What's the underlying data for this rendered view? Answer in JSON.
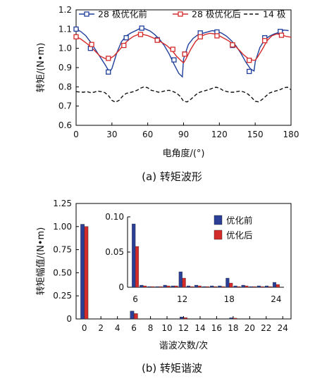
{
  "chart_data": [
    {
      "id": "a",
      "type": "line",
      "caption": "(a) 转矩波形",
      "xlabel": "电角度/(°)",
      "ylabel": "转矩/(N•m)",
      "xlim": [
        0,
        180
      ],
      "ylim": [
        0.6,
        1.2
      ],
      "xticks": [
        0,
        30,
        60,
        90,
        120,
        150,
        180
      ],
      "yticks": [
        0.6,
        0.7,
        0.8,
        0.9,
        1.0,
        1.1,
        1.2
      ],
      "ytick_labels": [
        "0.6",
        "0.7",
        "0.8",
        "0.9",
        "1.0",
        "1.1",
        "1.2"
      ],
      "legend": "top-right",
      "series": [
        {
          "name": "28 极优化前",
          "color": "#1f3f9a",
          "style": "solid",
          "marker": "square-open",
          "x": [
            0,
            4,
            8,
            12,
            16,
            20,
            24,
            28,
            30,
            34,
            38,
            42,
            46,
            50,
            54,
            58,
            62,
            66,
            70,
            74,
            78,
            82,
            86,
            89,
            90,
            94,
            98,
            102,
            106,
            110,
            114,
            118,
            122,
            126,
            130,
            134,
            138,
            142,
            146,
            149,
            150,
            154,
            158,
            162,
            166,
            170,
            174,
            178
          ],
          "y": [
            1.1,
            1.087,
            1.066,
            1.034,
            0.995,
            0.956,
            0.918,
            0.877,
            0.895,
            0.975,
            1.035,
            1.065,
            1.08,
            1.092,
            1.105,
            1.101,
            1.09,
            1.071,
            1.046,
            1.013,
            0.97,
            0.918,
            0.87,
            0.852,
            0.945,
            1.02,
            1.052,
            1.07,
            1.078,
            1.085,
            1.092,
            1.088,
            1.079,
            1.063,
            1.04,
            1.012,
            0.975,
            0.93,
            0.893,
            0.882,
            0.93,
            1.005,
            1.045,
            1.063,
            1.075,
            1.083,
            1.095,
            1.092
          ],
          "markers_x": [
            0,
            12,
            27,
            42,
            55,
            68,
            82,
            91,
            104,
            118,
            131,
            145,
            158,
            171
          ],
          "markers_y": [
            1.1,
            1.0,
            0.877,
            1.055,
            1.105,
            1.045,
            0.94,
            0.97,
            1.08,
            1.085,
            1.015,
            0.88,
            1.055,
            1.088
          ]
        },
        {
          "name": "28 极优化后",
          "color": "#d42a2a",
          "style": "solid",
          "marker": "square-open",
          "x": [
            0,
            4,
            8,
            12,
            16,
            20,
            24,
            28,
            32,
            36,
            40,
            44,
            48,
            52,
            56,
            60,
            64,
            68,
            72,
            76,
            80,
            84,
            88,
            90,
            92,
            96,
            100,
            104,
            108,
            112,
            116,
            120,
            124,
            128,
            132,
            136,
            140,
            144,
            148,
            150,
            152,
            156,
            160,
            164,
            168,
            172,
            176,
            180
          ],
          "y": [
            1.06,
            1.048,
            1.03,
            1.01,
            0.985,
            0.96,
            0.948,
            0.945,
            0.962,
            0.99,
            1.02,
            1.045,
            1.062,
            1.072,
            1.072,
            1.066,
            1.056,
            1.044,
            1.03,
            1.014,
            0.992,
            0.96,
            0.935,
            0.925,
            0.945,
            0.995,
            1.035,
            1.06,
            1.072,
            1.078,
            1.075,
            1.065,
            1.052,
            1.038,
            1.02,
            0.995,
            0.968,
            0.948,
            0.938,
            0.938,
            0.955,
            0.995,
            1.04,
            1.065,
            1.075,
            1.07,
            1.062,
            1.058
          ],
          "markers_x": [
            0,
            13,
            27,
            40,
            54,
            68,
            81,
            91,
            104,
            118,
            131,
            145,
            158,
            172
          ],
          "markers_y": [
            1.06,
            1.02,
            0.948,
            1.015,
            1.072,
            1.042,
            0.995,
            0.97,
            1.06,
            1.065,
            1.018,
            0.938,
            1.04,
            1.068
          ]
        },
        {
          "name": "14 极",
          "color": "#111111",
          "style": "dashed",
          "marker": "none",
          "x": [
            0,
            3,
            6,
            9,
            12,
            15,
            18,
            21,
            24,
            27,
            30,
            33,
            36,
            39,
            42,
            45,
            48,
            51,
            54,
            57,
            60,
            63,
            66,
            69,
            72,
            75,
            78,
            81,
            84,
            87,
            90,
            93,
            96,
            99,
            102,
            105,
            108,
            111,
            114,
            117,
            120,
            123,
            126,
            129,
            132,
            135,
            138,
            141,
            144,
            147,
            150,
            153,
            156,
            159,
            162,
            165,
            168,
            171,
            174,
            177,
            180
          ],
          "y": [
            0.775,
            0.773,
            0.772,
            0.775,
            0.77,
            0.772,
            0.778,
            0.775,
            0.77,
            0.755,
            0.73,
            0.72,
            0.73,
            0.752,
            0.766,
            0.77,
            0.775,
            0.782,
            0.793,
            0.8,
            0.795,
            0.782,
            0.778,
            0.772,
            0.775,
            0.78,
            0.782,
            0.776,
            0.768,
            0.752,
            0.725,
            0.722,
            0.735,
            0.752,
            0.768,
            0.775,
            0.78,
            0.785,
            0.792,
            0.798,
            0.794,
            0.782,
            0.776,
            0.772,
            0.772,
            0.776,
            0.778,
            0.772,
            0.762,
            0.745,
            0.725,
            0.722,
            0.735,
            0.752,
            0.768,
            0.775,
            0.78,
            0.786,
            0.795,
            0.798,
            0.785
          ]
        }
      ]
    },
    {
      "id": "b",
      "type": "bar",
      "caption": "(b) 转矩谐波",
      "xlabel": "谐波次数/次",
      "ylabel": "转矩幅值/(N•m)",
      "xlim": [
        -1,
        25
      ],
      "ylim": [
        0,
        1.25
      ],
      "xticks": [
        0,
        2,
        4,
        6,
        8,
        10,
        12,
        14,
        16,
        18,
        20,
        22,
        24
      ],
      "yticks": [
        0,
        0.25,
        0.5,
        0.75,
        1.0,
        1.25
      ],
      "ytick_labels": [
        "0",
        "0.25",
        "0.50",
        "0.75",
        "1.00",
        "1.25"
      ],
      "legend": "inset, top-right",
      "series": [
        {
          "name": "优化前",
          "color": "#2b3f96",
          "orders": [
            0,
            6,
            12,
            18
          ],
          "values": [
            1.025,
            0.085,
            0.021,
            0.012
          ]
        },
        {
          "name": "优化后",
          "color": "#d32a2a",
          "orders": [
            0,
            6,
            12,
            18
          ],
          "values": [
            1.0,
            0.058,
            0.014,
            0.008
          ]
        }
      ],
      "inset": {
        "xlim": [
          5,
          25
        ],
        "ylim": [
          0,
          0.1
        ],
        "xticks": [
          6,
          12,
          18,
          24
        ],
        "yticks": [
          0,
          0.05,
          0.1
        ],
        "ytick_labels": [
          "0",
          "0.05",
          "0.10"
        ],
        "series": [
          {
            "name": "优化前",
            "color": "#2b3f96",
            "orders": [
              6,
              7,
              8,
              9,
              10,
              11,
              12,
              13,
              14,
              15,
              16,
              17,
              18,
              19,
              20,
              21,
              22,
              23,
              24
            ],
            "values": [
              0.09,
              0.003,
              0.001,
              0.001,
              0.003,
              0.002,
              0.022,
              0.002,
              0.003,
              0.001,
              0.002,
              0.002,
              0.013,
              0.002,
              0.003,
              0.001,
              0.002,
              0.002,
              0.007
            ]
          },
          {
            "name": "优化后",
            "color": "#d32a2a",
            "orders": [
              6,
              7,
              8,
              9,
              10,
              11,
              12,
              13,
              14,
              15,
              16,
              17,
              18,
              19,
              20,
              21,
              22,
              23,
              24
            ],
            "values": [
              0.058,
              0.002,
              0.001,
              0.001,
              0.002,
              0.002,
              0.013,
              0.001,
              0.002,
              0.001,
              0.001,
              0.001,
              0.006,
              0.001,
              0.002,
              0.001,
              0.001,
              0.001,
              0.004
            ]
          }
        ]
      }
    }
  ]
}
